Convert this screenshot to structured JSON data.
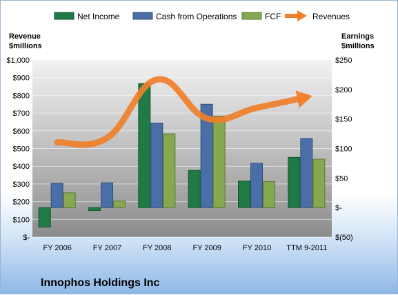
{
  "chart_data": {
    "type": "bar",
    "title": "Innophos Holdings Inc",
    "categories": [
      "FY 2006",
      "FY 2007",
      "FY 2008",
      "FY 2009",
      "FY 2010",
      "TTM 9-2011"
    ],
    "left_axis": {
      "label_line1": "Revenue",
      "label_line2": "$millions",
      "ylim": [
        0,
        1000
      ],
      "ticks": [
        0,
        100,
        200,
        300,
        400,
        500,
        600,
        700,
        800,
        900,
        1000
      ],
      "tick_labels": [
        "$-",
        "$100",
        "$200",
        "$300",
        "$400",
        "$500",
        "$600",
        "$700",
        "$800",
        "$900",
        "$1,000"
      ]
    },
    "right_axis": {
      "label_line1": "Earnings",
      "label_line2": "$millions",
      "ylim": [
        -50,
        250
      ],
      "ticks": [
        -50,
        0,
        50,
        100,
        150,
        200,
        250
      ],
      "tick_labels": [
        "$(50)",
        "$-",
        "$50",
        "$100",
        "$150",
        "$200",
        "$250"
      ]
    },
    "series": [
      {
        "name": "Net Income",
        "axis": "right",
        "kind": "bar",
        "color": "#1f7a45",
        "values": [
          -33,
          -5,
          210,
          63,
          45,
          85
        ]
      },
      {
        "name": "Cash from Operations",
        "axis": "right",
        "kind": "bar",
        "color": "#4a6fa8",
        "values": [
          41,
          42,
          143,
          175,
          75,
          117
        ]
      },
      {
        "name": "FCF",
        "axis": "right",
        "kind": "bar",
        "color": "#86a84f",
        "values": [
          25,
          11,
          125,
          155,
          44,
          82
        ]
      },
      {
        "name": "Revenues",
        "axis": "left",
        "kind": "line",
        "color": "#f07f2a",
        "values": [
          535,
          560,
          890,
          670,
          730,
          790
        ]
      }
    ],
    "grid": true,
    "legend": "top"
  }
}
